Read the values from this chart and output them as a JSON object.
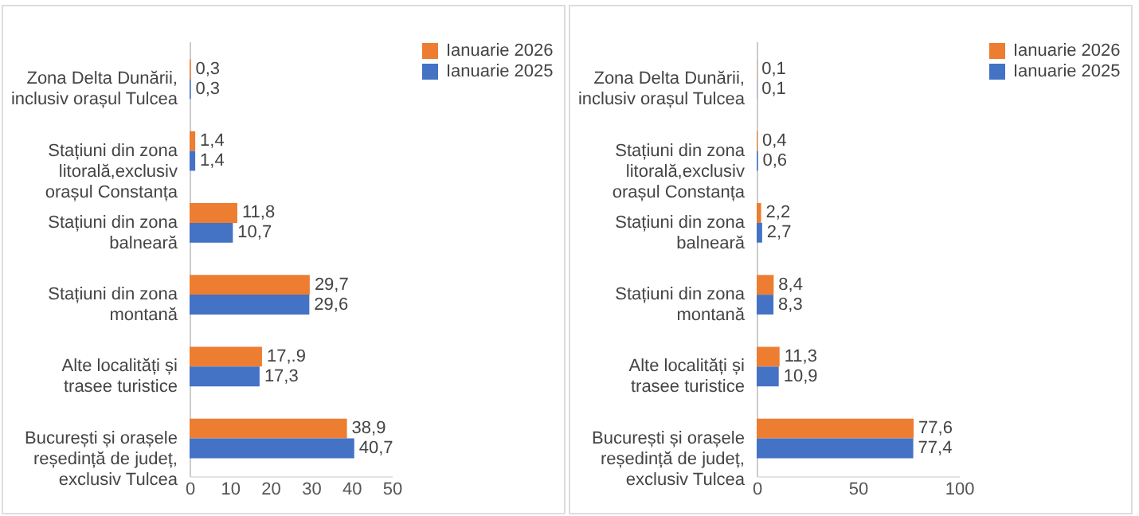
{
  "chart_data": [
    {
      "type": "bar",
      "orientation": "horizontal",
      "categories": [
        "Zona Delta Dunării, inclusiv orașul Tulcea",
        "Stațiuni din zona litorală,exclusiv orașul Constanța",
        "Stațiuni din zona balneară",
        "Stațiuni din zona montană",
        "Alte localități și trasee turistice",
        "București și orașele reședință de județ, exclusiv Tulcea"
      ],
      "series": [
        {
          "name": "Ianuarie 2026",
          "color": "#ed7d31",
          "values": [
            0.3,
            1.4,
            11.8,
            29.7,
            17.9,
            38.9
          ],
          "value_labels": [
            "0,3",
            "1,4",
            "11,8",
            "29,7",
            "17,.9",
            "38,9"
          ]
        },
        {
          "name": "Ianuarie 2025",
          "color": "#4472c4",
          "values": [
            0.3,
            1.4,
            10.7,
            29.6,
            17.3,
            40.7
          ],
          "value_labels": [
            "0,3",
            "1,4",
            "10,7",
            "29,6",
            "17,3",
            "40,7"
          ]
        }
      ],
      "xlim": [
        0,
        50
      ],
      "xticks": [
        0,
        10,
        20,
        30,
        40,
        50
      ],
      "legend": "right"
    },
    {
      "type": "bar",
      "orientation": "horizontal",
      "categories": [
        "Zona Delta Dunării, inclusiv orașul Tulcea",
        "Stațiuni din zona litorală,exclusiv orașul Constanța",
        "Stațiuni din zona balneară",
        "Stațiuni din zona montană",
        "Alte localități și trasee turistice",
        "București și orașele reședință de județ, exclusiv Tulcea"
      ],
      "series": [
        {
          "name": "Ianuarie 2026",
          "color": "#ed7d31",
          "values": [
            0.1,
            0.4,
            2.2,
            8.4,
            11.3,
            77.6
          ],
          "value_labels": [
            "0,1",
            "0,4",
            "2,2",
            "8,4",
            "11,3",
            "77,6"
          ]
        },
        {
          "name": "Ianuarie 2025",
          "color": "#4472c4",
          "values": [
            0.1,
            0.6,
            2.7,
            8.3,
            10.9,
            77.4
          ],
          "value_labels": [
            "0,1",
            "0,6",
            "2,7",
            "8,3",
            "10,9",
            "77,4"
          ]
        }
      ],
      "xlim": [
        0,
        100
      ],
      "xticks": [
        0,
        50,
        100
      ],
      "legend": "right"
    }
  ]
}
